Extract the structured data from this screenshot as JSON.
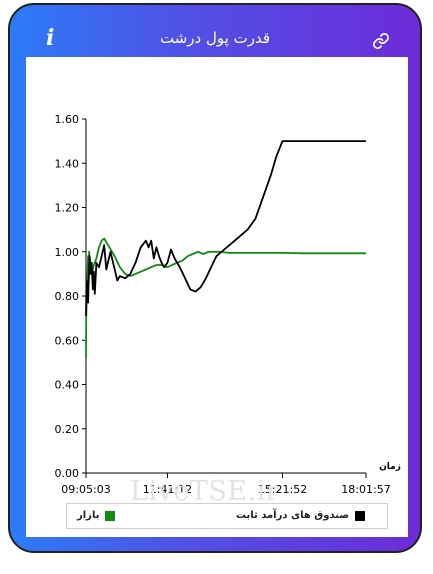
{
  "header": {
    "title": "قدرت پول درشت",
    "info_icon": "i"
  },
  "watermark": "LiveTSE.ir",
  "colors": {
    "fund": "#000000",
    "market": "#138a13"
  },
  "chart_data": {
    "type": "line",
    "title": "",
    "xlabel": "زمان",
    "ylabel": "",
    "ylim": [
      0,
      1.6
    ],
    "y_ticks": [
      "0.00",
      "0.20",
      "0.40",
      "0.60",
      "0.80",
      "1.00",
      "1.20",
      "1.40",
      "1.60"
    ],
    "x_ticks": [
      "09:05:03",
      "11:41:12",
      "15:21:52",
      "18:01:57"
    ],
    "x_range": [
      "09:05:03",
      "18:01:57"
    ],
    "grid": false,
    "legend_position": "bottom",
    "series": [
      {
        "name": "صندوق های درآمد ثابت",
        "color": "#000000",
        "points": [
          [
            "09:05:03",
            0.71
          ],
          [
            "09:06:00",
            0.87
          ],
          [
            "09:07:00",
            0.79
          ],
          [
            "09:08:00",
            0.86
          ],
          [
            "09:09:00",
            0.77
          ],
          [
            "09:10:00",
            0.86
          ],
          [
            "09:12:00",
            0.98
          ],
          [
            "09:14:00",
            0.9
          ],
          [
            "09:16:00",
            0.95
          ],
          [
            "09:18:00",
            0.83
          ],
          [
            "09:20:00",
            0.91
          ],
          [
            "09:22:00",
            0.81
          ],
          [
            "09:25:00",
            0.95
          ],
          [
            "09:30:00",
            0.93
          ],
          [
            "09:35:00",
            0.98
          ],
          [
            "09:40:00",
            1.03
          ],
          [
            "09:44:00",
            0.92
          ],
          [
            "09:48:00",
            0.96
          ],
          [
            "09:52:00",
            1.0
          ],
          [
            "10:00:00",
            0.92
          ],
          [
            "10:05:00",
            0.87
          ],
          [
            "10:10:00",
            0.89
          ],
          [
            "10:20:00",
            0.88
          ],
          [
            "10:30:00",
            0.9
          ],
          [
            "10:40:00",
            0.95
          ],
          [
            "10:50:00",
            1.02
          ],
          [
            "11:00:00",
            1.05
          ],
          [
            "11:05:00",
            1.02
          ],
          [
            "11:10:00",
            1.05
          ],
          [
            "11:15:00",
            0.97
          ],
          [
            "11:20:00",
            1.02
          ],
          [
            "11:25:00",
            0.98
          ],
          [
            "11:30:00",
            0.95
          ],
          [
            "11:35:00",
            0.93
          ],
          [
            "11:41:12",
            0.95
          ],
          [
            "11:48:00",
            1.01
          ],
          [
            "11:55:00",
            0.97
          ],
          [
            "12:05:00",
            0.93
          ],
          [
            "12:15:00",
            0.88
          ],
          [
            "12:25:00",
            0.83
          ],
          [
            "12:35:00",
            0.82
          ],
          [
            "12:45:00",
            0.84
          ],
          [
            "12:55:00",
            0.88
          ],
          [
            "13:05:00",
            0.93
          ],
          [
            "13:15:00",
            0.98
          ],
          [
            "13:30:00",
            1.01
          ],
          [
            "13:45:00",
            1.04
          ],
          [
            "14:00:00",
            1.07
          ],
          [
            "14:15:00",
            1.1
          ],
          [
            "14:30:00",
            1.15
          ],
          [
            "14:45:00",
            1.25
          ],
          [
            "15:00:00",
            1.35
          ],
          [
            "15:10:00",
            1.43
          ],
          [
            "15:21:52",
            1.5
          ],
          [
            "16:00:00",
            1.5
          ],
          [
            "17:00:00",
            1.5
          ],
          [
            "18:01:57",
            1.5
          ]
        ]
      },
      {
        "name": "بازار",
        "color": "#138a13",
        "points": [
          [
            "09:05:03",
            0.52
          ],
          [
            "09:05:30",
            0.7
          ],
          [
            "09:06:00",
            0.75
          ],
          [
            "09:07:00",
            0.82
          ],
          [
            "09:08:00",
            0.9
          ],
          [
            "09:09:00",
            0.98
          ],
          [
            "09:10:00",
            0.92
          ],
          [
            "09:11:00",
            1.0
          ],
          [
            "09:13:00",
            0.94
          ],
          [
            "09:16:00",
            0.9
          ],
          [
            "09:20:00",
            0.94
          ],
          [
            "09:25:00",
            0.97
          ],
          [
            "09:30:00",
            1.02
          ],
          [
            "09:35:00",
            1.05
          ],
          [
            "09:40:00",
            1.06
          ],
          [
            "09:45:00",
            1.04
          ],
          [
            "09:50:00",
            1.02
          ],
          [
            "10:00:00",
            0.98
          ],
          [
            "10:10:00",
            0.93
          ],
          [
            "10:20:00",
            0.9
          ],
          [
            "10:30:00",
            0.89
          ],
          [
            "10:40:00",
            0.9
          ],
          [
            "10:50:00",
            0.91
          ],
          [
            "11:00:00",
            0.92
          ],
          [
            "11:10:00",
            0.93
          ],
          [
            "11:20:00",
            0.94
          ],
          [
            "11:30:00",
            0.94
          ],
          [
            "11:41:12",
            0.93
          ],
          [
            "11:50:00",
            0.94
          ],
          [
            "12:00:00",
            0.95
          ],
          [
            "12:10:00",
            0.96
          ],
          [
            "12:20:00",
            0.98
          ],
          [
            "12:30:00",
            0.99
          ],
          [
            "12:40:00",
            1.0
          ],
          [
            "12:50:00",
            0.99
          ],
          [
            "13:00:00",
            1.0
          ],
          [
            "13:20:00",
            1.0
          ],
          [
            "13:40:00",
            0.995
          ],
          [
            "14:00:00",
            0.995
          ],
          [
            "15:00:00",
            0.995
          ],
          [
            "15:21:52",
            0.995
          ],
          [
            "16:00:00",
            0.993
          ],
          [
            "17:00:00",
            0.993
          ],
          [
            "18:01:57",
            0.993
          ]
        ]
      }
    ]
  }
}
